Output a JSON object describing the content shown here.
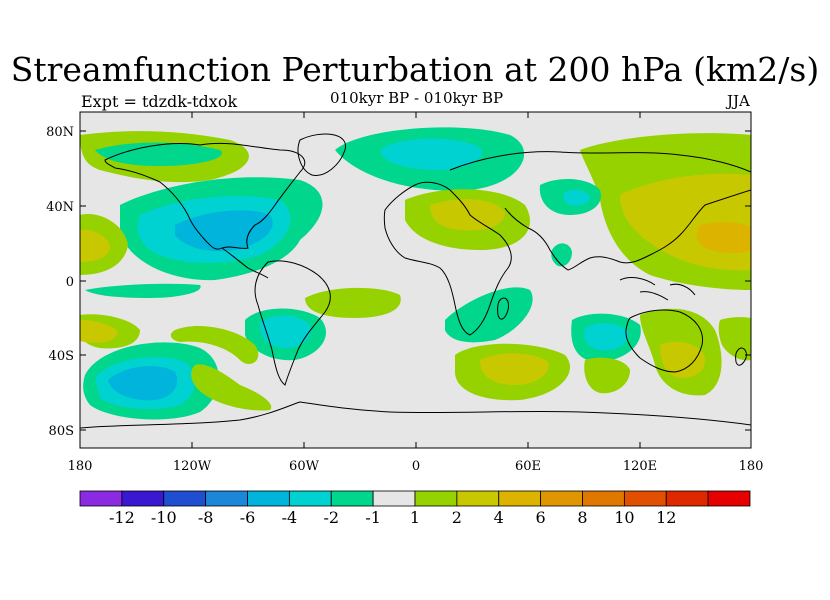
{
  "title": "Streamfunction Perturbation at 200 hPa (km2/s)",
  "subtitle": "010kyr BP - 010kyr BP",
  "left_label": "Expt = tdzdk-tdxok",
  "right_label": "JJA",
  "lat_labels": [
    "80N",
    "40N",
    "0",
    "40S",
    "80S"
  ],
  "lon_labels": [
    "180",
    "120W",
    "60W",
    "0",
    "60E",
    "120E",
    "180"
  ],
  "colorbar": {
    "colors": [
      "#8a2be2",
      "#3a18d0",
      "#1f4fd0",
      "#1c86d8",
      "#00b4dc",
      "#00d2d2",
      "#00d68c",
      "#e6e6e6",
      "#96d200",
      "#c8c800",
      "#dcb400",
      "#e09600",
      "#e07800",
      "#e05000",
      "#e02800",
      "#e60000"
    ],
    "labels": [
      "-12",
      "-10",
      "-8",
      "-6",
      "-4",
      "-2",
      "-1",
      "1",
      "2",
      "4",
      "6",
      "8",
      "10",
      "12"
    ]
  },
  "colors": {
    "land_outline": "#000000",
    "background": "#e6e6e6"
  }
}
